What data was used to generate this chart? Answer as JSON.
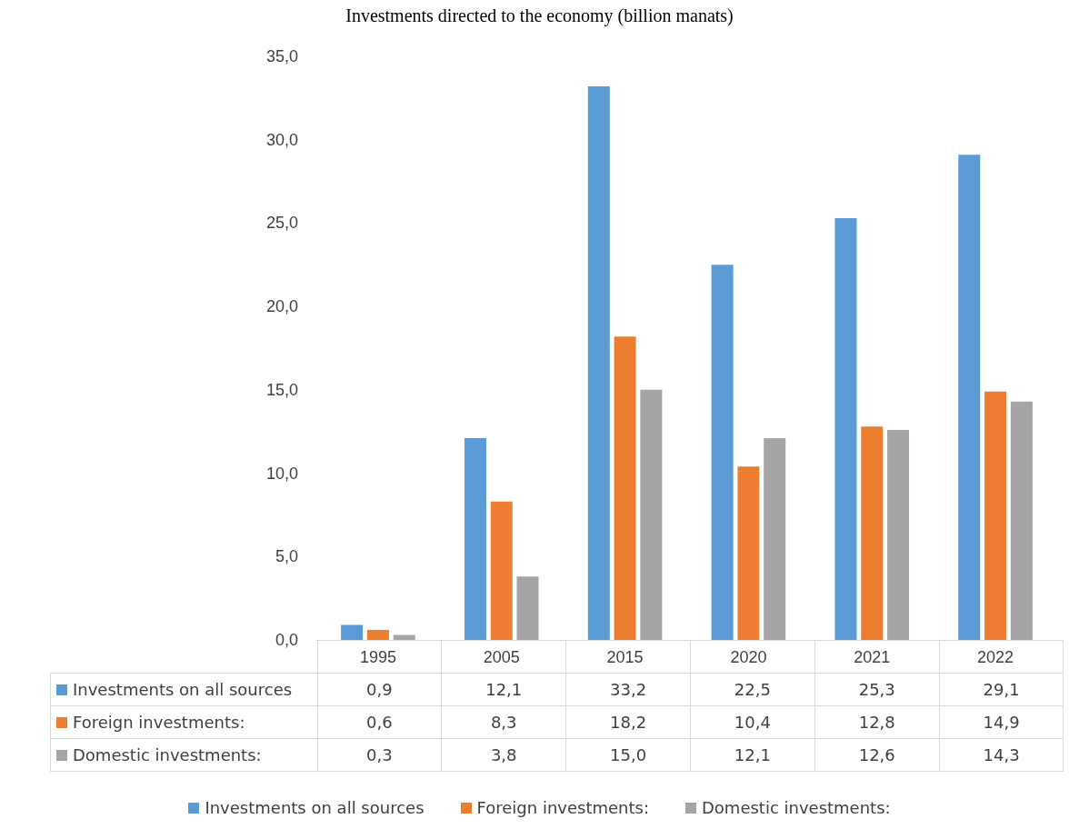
{
  "chart_data": {
    "type": "bar",
    "title": "Investments directed to the economy (billion manats)",
    "categories": [
      "1995",
      "2005",
      "2015",
      "2020",
      "2021",
      "2022"
    ],
    "series": [
      {
        "name": "Investments on all sources",
        "color": "#5b9bd5",
        "values": [
          0.9,
          12.1,
          33.2,
          22.5,
          25.3,
          29.1
        ],
        "value_labels": [
          "0,9",
          "12,1",
          "33,2",
          "22,5",
          "25,3",
          "29,1"
        ]
      },
      {
        "name": "Foreign investments:",
        "color": "#ed7d31",
        "values": [
          0.6,
          8.3,
          18.2,
          10.4,
          12.8,
          14.9
        ],
        "value_labels": [
          "0,6",
          "8,3",
          "18,2",
          "10,4",
          "12,8",
          "14,9"
        ]
      },
      {
        "name": "Domestic investments:",
        "color": "#a5a5a5",
        "values": [
          0.3,
          3.8,
          15.0,
          12.1,
          12.6,
          14.3
        ],
        "value_labels": [
          "0,3",
          "3,8",
          "15,0",
          "12,1",
          "12,6",
          "14,3"
        ]
      }
    ],
    "ylim": [
      0,
      35
    ],
    "yticks": [
      {
        "value": 0,
        "label": "0,0"
      },
      {
        "value": 5,
        "label": "5,0"
      },
      {
        "value": 10,
        "label": "10,0"
      },
      {
        "value": 15,
        "label": "15,0"
      },
      {
        "value": 20,
        "label": "20,0"
      },
      {
        "value": 25,
        "label": "25,0"
      },
      {
        "value": 30,
        "label": "30,0"
      },
      {
        "value": 35,
        "label": "35,0"
      }
    ],
    "grid": false,
    "legend": "bottom"
  }
}
